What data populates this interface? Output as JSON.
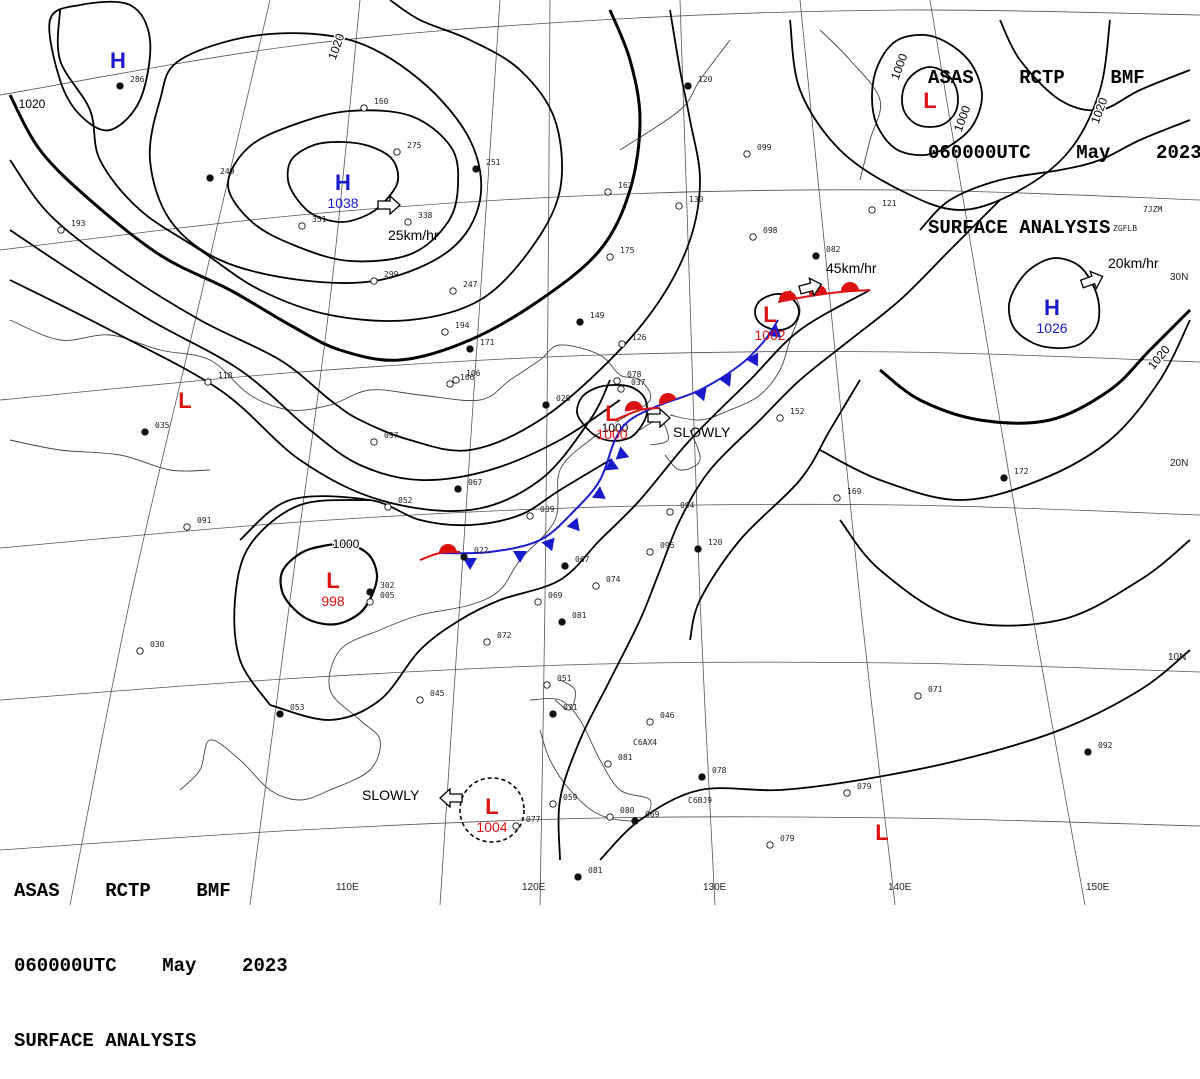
{
  "header": {
    "line1": "ASAS    RCTP    BMF",
    "line2": "060000UTC    May    2023",
    "line3": "SURFACE ANALYSIS"
  },
  "colors": {
    "high": "#1a1acc",
    "low": "#dd1111",
    "cold_front": "#1a1acc",
    "warm_front": "#dd1111",
    "isobar": "#000000"
  },
  "isobar_labels": [
    "1020",
    "1020",
    "1000",
    "1000",
    "1020",
    "1000",
    "1020",
    "1000"
  ],
  "centers": [
    {
      "type": "H",
      "pressure": ""
    },
    {
      "type": "H",
      "pressure": "1038",
      "motion": "25km/hr"
    },
    {
      "type": "H",
      "pressure": "1026",
      "motion": "20km/hr"
    },
    {
      "type": "L",
      "pressure": ""
    },
    {
      "type": "L",
      "pressure": ""
    },
    {
      "type": "L",
      "pressure": "1000",
      "motion": "SLOWLY"
    },
    {
      "type": "L",
      "pressure": "1002",
      "motion": "45km/hr"
    },
    {
      "type": "L",
      "pressure": "998"
    },
    {
      "type": "L",
      "pressure": "1004",
      "motion": "SLOWLY"
    },
    {
      "type": "L",
      "pressure": ""
    }
  ],
  "latitude_labels": [
    "30N",
    "20N",
    "10N"
  ],
  "longitude_labels": [
    "110E",
    "120E",
    "130E",
    "140E",
    "150E"
  ],
  "ship_ids": [
    "C6AX4",
    "C6BJ9",
    "7JZM",
    "ZGFLB"
  ],
  "station_values": [
    "286",
    "351",
    "338",
    "251",
    "247",
    "194",
    "171",
    "166",
    "097",
    "067",
    "052",
    "039",
    "022",
    "005",
    "069",
    "081",
    "072",
    "074",
    "067",
    "095",
    "094",
    "120",
    "152",
    "169",
    "172",
    "121",
    "098",
    "082",
    "162",
    "175",
    "149",
    "126",
    "130",
    "120",
    "099",
    "118",
    "035",
    "091",
    "030",
    "053",
    "045",
    "051",
    "071",
    "046",
    "081",
    "078",
    "079",
    "080",
    "069",
    "059",
    "077",
    "081",
    "079",
    "071",
    "092",
    "078",
    "037",
    "028",
    "106",
    "160",
    "249",
    "275",
    "299",
    "302",
    "193"
  ]
}
